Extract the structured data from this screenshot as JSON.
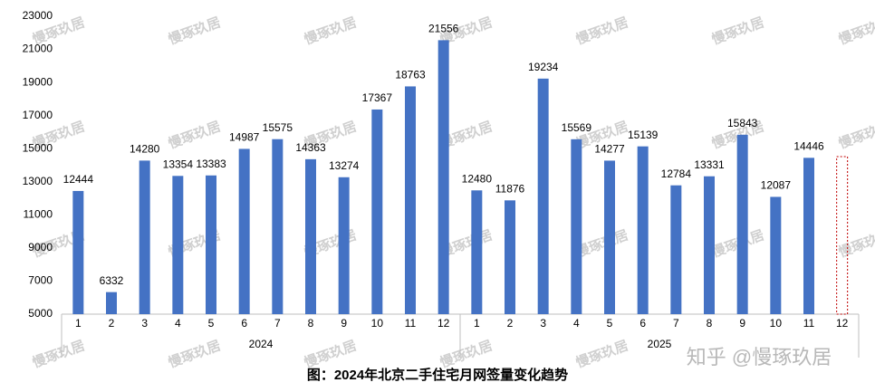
{
  "chart_data": {
    "type": "bar",
    "title": "图：2024年北京二手住宅月网签量变化趋势",
    "watermark": "慢琢玖居",
    "credit": "知乎 @慢琢玖居",
    "categories": [
      "1",
      "2",
      "3",
      "4",
      "5",
      "6",
      "7",
      "8",
      "9",
      "10",
      "11",
      "12",
      "1",
      "2",
      "3",
      "4",
      "5",
      "6",
      "7",
      "8",
      "9",
      "10",
      "11",
      "12"
    ],
    "groups": [
      "2024",
      "2025"
    ],
    "values": [
      12444,
      6332,
      14280,
      13354,
      13383,
      14987,
      15575,
      14363,
      13274,
      17367,
      18763,
      21556,
      12480,
      11876,
      19234,
      15569,
      14277,
      15139,
      12784,
      13331,
      15843,
      12087,
      14446,
      null
    ],
    "color": "#4472c4",
    "ylim": [
      5000,
      23000
    ],
    "yticks": [
      5000,
      7000,
      9000,
      11000,
      13000,
      15000,
      17000,
      19000,
      21000,
      23000
    ],
    "grid": false
  }
}
